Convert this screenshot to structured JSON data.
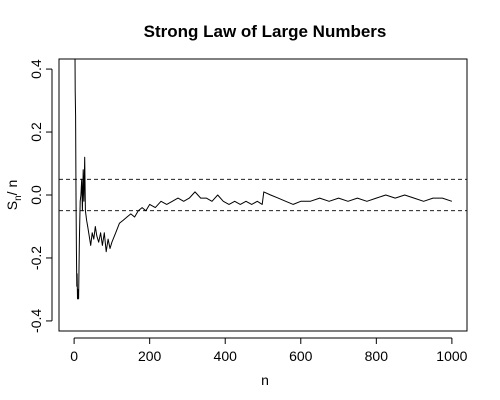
{
  "chart_data": {
    "type": "line",
    "title": "Strong Law of Large Numbers",
    "xlabel": "n",
    "ylabel_main": "S",
    "ylabel_sub": "n",
    "ylabel_tail": "/ n",
    "xlim": [
      0,
      1000
    ],
    "ylim": [
      -0.4,
      0.4
    ],
    "x_ticks": [
      0,
      200,
      400,
      600,
      800,
      1000
    ],
    "x_tick_labels": [
      "0",
      "200",
      "400",
      "600",
      "800",
      "1000"
    ],
    "y_ticks": [
      -0.4,
      -0.2,
      0.0,
      0.2,
      0.4
    ],
    "y_tick_labels": [
      "-0.4",
      "-0.2",
      "0.0",
      "0.2",
      "0.4"
    ],
    "reference_lines": [
      0.05,
      -0.05
    ],
    "grid": false,
    "series": [
      {
        "x": [
          1,
          2,
          3,
          4,
          5,
          6,
          7,
          8,
          9,
          10,
          12,
          14,
          16,
          18,
          20,
          22,
          24,
          26,
          28,
          30,
          33,
          36,
          40,
          44,
          48,
          52,
          56,
          60,
          65,
          70,
          75,
          80,
          85,
          90,
          95,
          100,
          110,
          120,
          130,
          140,
          150,
          160,
          170,
          180,
          190,
          200,
          215,
          230,
          245,
          260,
          275,
          290,
          305,
          320,
          335,
          350,
          365,
          380,
          395,
          410,
          425,
          440,
          455,
          470,
          485,
          498,
          502,
          520,
          540,
          560,
          580,
          600,
          625,
          650,
          675,
          700,
          725,
          750,
          775,
          800,
          825,
          850,
          875,
          900,
          925,
          950,
          975,
          1000
        ],
        "y": [
          1.0,
          0.5,
          0.33,
          0.25,
          0.0,
          -0.17,
          -0.29,
          -0.25,
          -0.33,
          -0.3,
          -0.33,
          -0.14,
          -0.02,
          0.0,
          0.05,
          -0.05,
          0.08,
          -0.02,
          0.12,
          -0.05,
          -0.08,
          -0.1,
          -0.13,
          -0.16,
          -0.12,
          -0.14,
          -0.1,
          -0.13,
          -0.15,
          -0.12,
          -0.16,
          -0.12,
          -0.18,
          -0.14,
          -0.17,
          -0.15,
          -0.12,
          -0.09,
          -0.08,
          -0.07,
          -0.06,
          -0.07,
          -0.05,
          -0.04,
          -0.05,
          -0.03,
          -0.04,
          -0.02,
          -0.03,
          -0.02,
          -0.01,
          -0.02,
          -0.01,
          0.01,
          -0.01,
          -0.01,
          -0.02,
          0.0,
          -0.02,
          -0.03,
          -0.02,
          -0.03,
          -0.02,
          -0.03,
          -0.02,
          -0.03,
          0.01,
          0.0,
          -0.01,
          -0.02,
          -0.03,
          -0.02,
          -0.02,
          -0.01,
          -0.02,
          -0.01,
          -0.02,
          -0.01,
          -0.02,
          -0.01,
          0.0,
          -0.01,
          0.0,
          -0.01,
          -0.02,
          -0.01,
          -0.01,
          -0.02
        ]
      }
    ]
  }
}
